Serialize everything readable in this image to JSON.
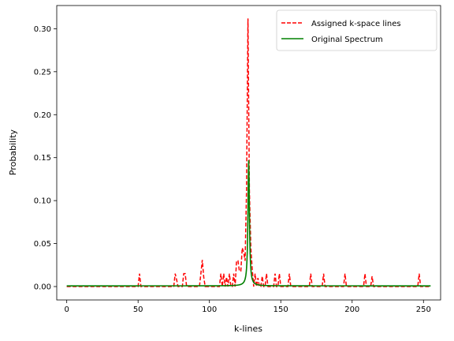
{
  "chart_data": {
    "type": "line",
    "xlabel": "k-lines",
    "ylabel": "Probability",
    "xlim": [
      -7,
      262
    ],
    "ylim": [
      -0.0156,
      0.327
    ],
    "x_ticks": [
      0,
      50,
      100,
      150,
      200,
      250
    ],
    "y_ticks": [
      0.0,
      0.05,
      0.1,
      0.15,
      0.2,
      0.25,
      0.3
    ],
    "y_tick_labels": [
      "0.00",
      "0.05",
      "0.10",
      "0.15",
      "0.20",
      "0.25",
      "0.30"
    ],
    "grid": false,
    "legend_position": "top-right",
    "series": [
      {
        "name": "Assigned k-space lines",
        "color": "#ff0000",
        "style": "dashed",
        "spikes": [
          [
            51,
            0.015
          ],
          [
            76,
            0.015
          ],
          [
            77,
            0.008
          ],
          [
            82,
            0.015
          ],
          [
            83,
            0.015
          ],
          [
            94,
            0.015
          ],
          [
            95,
            0.031
          ],
          [
            96,
            0.011
          ],
          [
            108,
            0.015
          ],
          [
            110,
            0.015
          ],
          [
            112,
            0.011
          ],
          [
            114,
            0.015
          ],
          [
            117,
            0.015
          ],
          [
            119,
            0.03
          ],
          [
            120,
            0.03
          ],
          [
            121,
            0.018
          ],
          [
            122,
            0.018
          ],
          [
            123,
            0.045
          ],
          [
            124,
            0.04
          ],
          [
            125,
            0.03
          ],
          [
            126,
            0.112
          ],
          [
            127,
            0.312
          ],
          [
            128,
            0.112
          ],
          [
            129,
            0.045
          ],
          [
            130,
            0.02
          ],
          [
            132,
            0.015
          ],
          [
            134,
            0.01
          ],
          [
            137,
            0.012
          ],
          [
            140,
            0.015
          ],
          [
            146,
            0.015
          ],
          [
            149,
            0.015
          ],
          [
            156,
            0.015
          ],
          [
            171,
            0.015
          ],
          [
            180,
            0.015
          ],
          [
            195,
            0.015
          ],
          [
            209,
            0.015
          ],
          [
            214,
            0.012
          ],
          [
            247,
            0.015
          ]
        ],
        "x_range": [
          0,
          255
        ]
      },
      {
        "name": "Original Spectrum",
        "color": "#008000",
        "style": "solid",
        "center": 127.5,
        "peak": 0.147,
        "x_range": [
          0,
          255
        ]
      }
    ]
  }
}
